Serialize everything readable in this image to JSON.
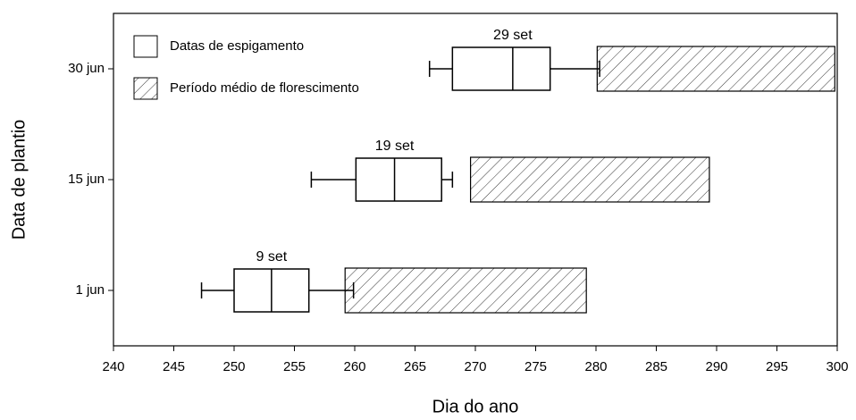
{
  "chart_data": {
    "type": "boxplot",
    "x_label": "Dia do ano",
    "y_label": "Data de plantio",
    "categories": [
      "1 jun",
      "15 jun",
      "30 jun"
    ],
    "series": [
      {
        "name": "Datas de espigamento",
        "type": "box",
        "color": "#000000",
        "whislo": [
          247.3,
          256.4,
          266.2
        ],
        "q1": [
          250,
          260.1,
          268.1
        ],
        "med": [
          253.1,
          263.3,
          273.1
        ],
        "q3": [
          256.2,
          267.2,
          276.2
        ],
        "whishi": [
          259.9,
          268.1,
          280.3
        ],
        "labels": [
          "9 set",
          "19 set",
          "29 set"
        ]
      },
      {
        "name": "Período médio de florescimento",
        "type": "range",
        "color": "#000000",
        "hatch": "/",
        "start": [
          259.2,
          269.6,
          280.1
        ],
        "end": [
          279.2,
          289.4,
          299.8
        ]
      }
    ],
    "xlim": [
      240,
      300
    ],
    "xticks": [
      240,
      245,
      250,
      255,
      260,
      265,
      270,
      275,
      280,
      285,
      290,
      295,
      300
    ],
    "legend": "upper left"
  }
}
